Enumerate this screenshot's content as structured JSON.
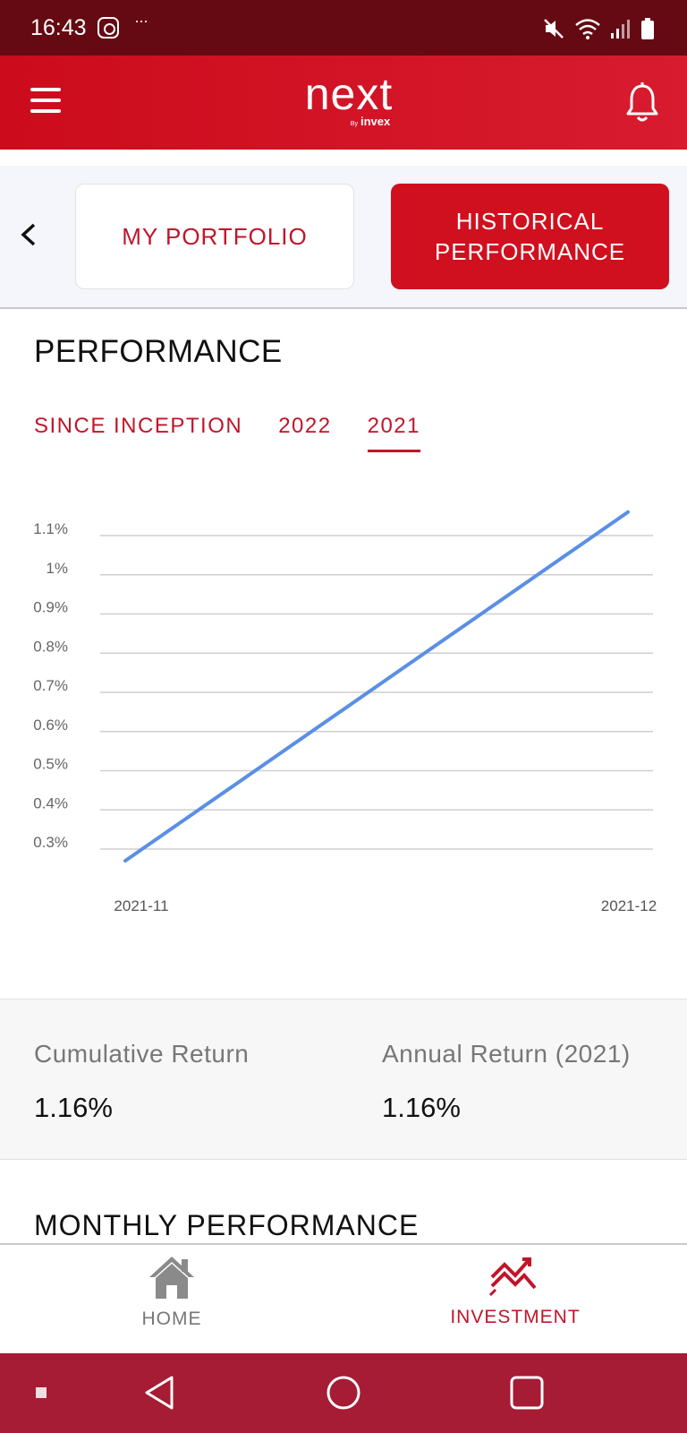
{
  "status_bar": {
    "time": "16:43",
    "dots": "···"
  },
  "header": {
    "logo_text": "next",
    "logo_by": "By",
    "logo_brand": "invex"
  },
  "segments": {
    "portfolio": "MY PORTFOLIO",
    "historical_line1": "HISTORICAL",
    "historical_line2": "PERFORMANCE"
  },
  "performance": {
    "title": "PERFORMANCE",
    "tabs": [
      {
        "label": "SINCE INCEPTION",
        "active": false
      },
      {
        "label": "2022",
        "active": false
      },
      {
        "label": "2021",
        "active": true
      }
    ]
  },
  "chart_data": {
    "type": "line",
    "x": [
      "2021-11",
      "2021-12"
    ],
    "series": [
      {
        "values": [
          0.27,
          1.16
        ]
      }
    ],
    "y_ticks": [
      "0.3%",
      "0.4%",
      "0.5%",
      "0.6%",
      "0.7%",
      "0.8%",
      "0.9%",
      "1%",
      "1.1%"
    ],
    "y_tick_values": [
      0.3,
      0.4,
      0.5,
      0.6,
      0.7,
      0.8,
      0.9,
      1.0,
      1.1
    ],
    "ylim": [
      0.3,
      1.1
    ],
    "x_ticks": [
      "2021-11",
      "2021-12"
    ],
    "grid": true,
    "line_color": "#5b8fe6",
    "title": "",
    "xlabel": "",
    "ylabel": ""
  },
  "returns": {
    "cumulative_label": "Cumulative Return",
    "cumulative_value": "1.16%",
    "annual_label": "Annual Return (2021)",
    "annual_value": "1.16%"
  },
  "monthly": {
    "title": "MONTHLY PERFORMANCE"
  },
  "bottom_nav": {
    "home_label": "HOME",
    "investment_label": "INVESTMENT",
    "active": "investment"
  },
  "colors": {
    "brand_red": "#d0101e",
    "status_bar": "#650a12",
    "system_nav": "#a51c34"
  },
  "icons": [
    "instagram-icon",
    "mute-icon",
    "wifi-icon",
    "signal-icon",
    "battery-icon",
    "menu-icon",
    "bell-icon",
    "back-icon",
    "home-icon",
    "investment-icon",
    "nav-back-icon",
    "nav-home-circle-icon",
    "nav-recents-icon"
  ]
}
